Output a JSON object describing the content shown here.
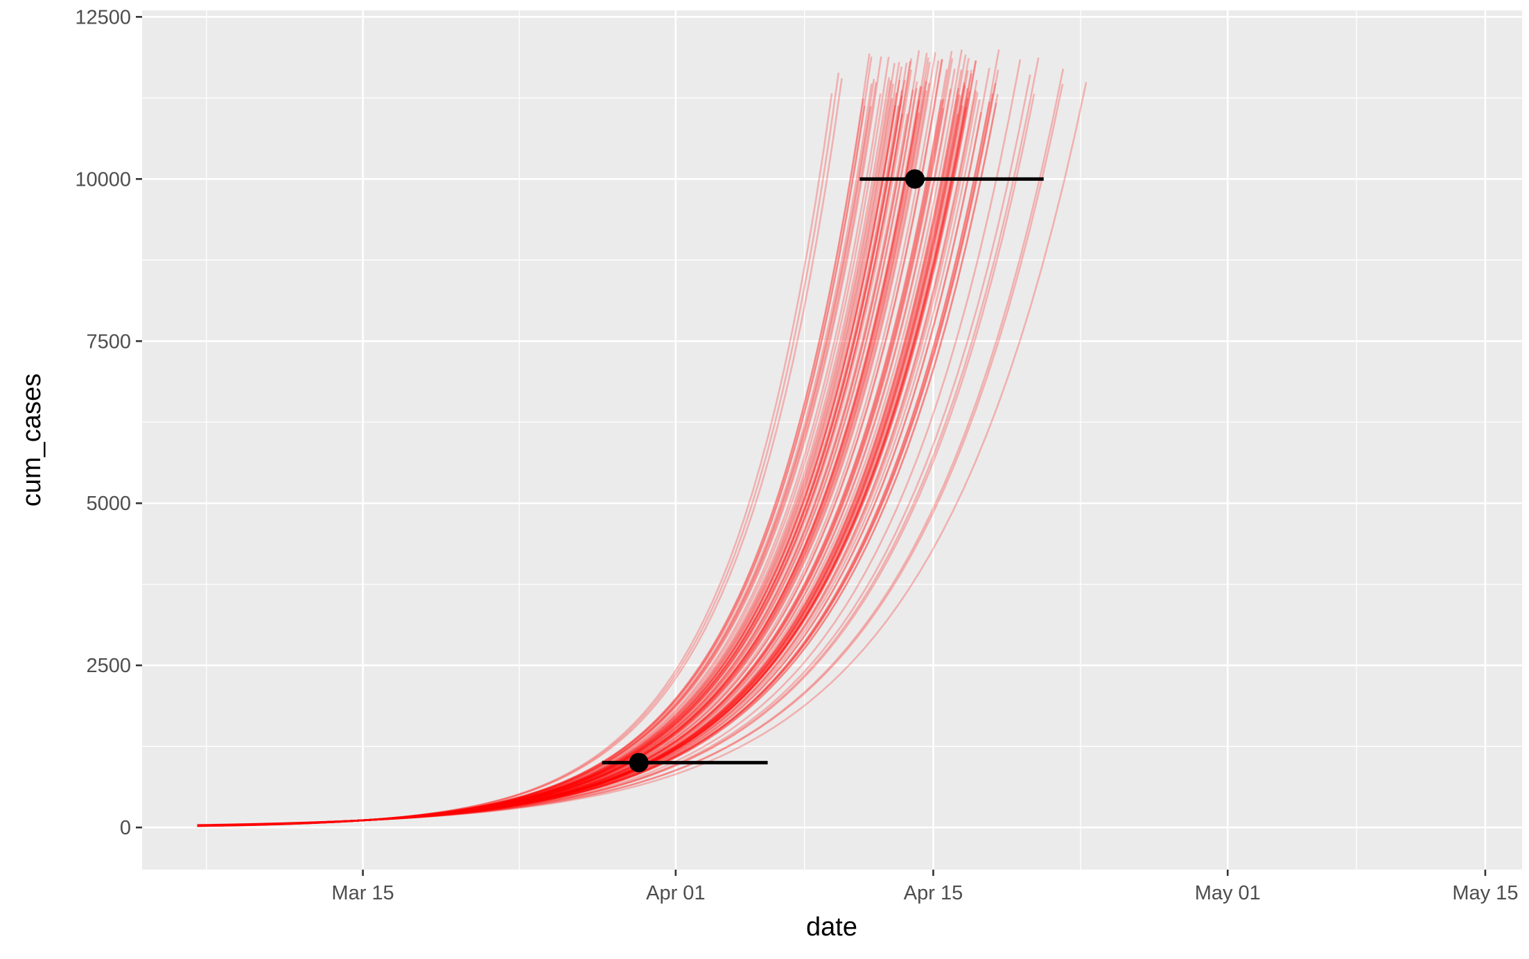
{
  "chart_data": {
    "type": "line",
    "xlabel": "date",
    "ylabel": "cum_cases",
    "xlim": [
      "2020-03-03",
      "2020-05-17"
    ],
    "ylim": [
      -650,
      12600
    ],
    "x_ticks": [
      {
        "date": "2020-03-15",
        "label": "Mar 15"
      },
      {
        "date": "2020-04-01",
        "label": "Apr 01"
      },
      {
        "date": "2020-04-15",
        "label": "Apr 15"
      },
      {
        "date": "2020-05-01",
        "label": "May 01"
      },
      {
        "date": "2020-05-15",
        "label": "May 15"
      }
    ],
    "y_ticks": [
      0,
      2500,
      5000,
      7500,
      10000,
      12500
    ],
    "background": "#ebebeb",
    "grid": true,
    "legend": "none",
    "simulated_trajectories": {
      "color": "#ff0000",
      "count": 100,
      "start_date": "2020-03-06",
      "start_value": 5,
      "value_at_mar15": 110,
      "end_value_range": [
        11000,
        12000
      ],
      "date_reaching_1000": {
        "min": "2020-03-23",
        "median": "2020-03-30",
        "max": "2020-04-07"
      },
      "date_reaching_10000": {
        "min": "2020-04-08",
        "median": "2020-04-14",
        "max": "2020-04-23"
      }
    },
    "intervals": [
      {
        "y": 1000,
        "x": "2020-03-30",
        "x_low": "2020-03-28",
        "x_high": "2020-04-06"
      },
      {
        "y": 10000,
        "x": "2020-04-14",
        "x_low": "2020-04-11",
        "x_high": "2020-04-21"
      }
    ],
    "interval_color": "#000000"
  }
}
